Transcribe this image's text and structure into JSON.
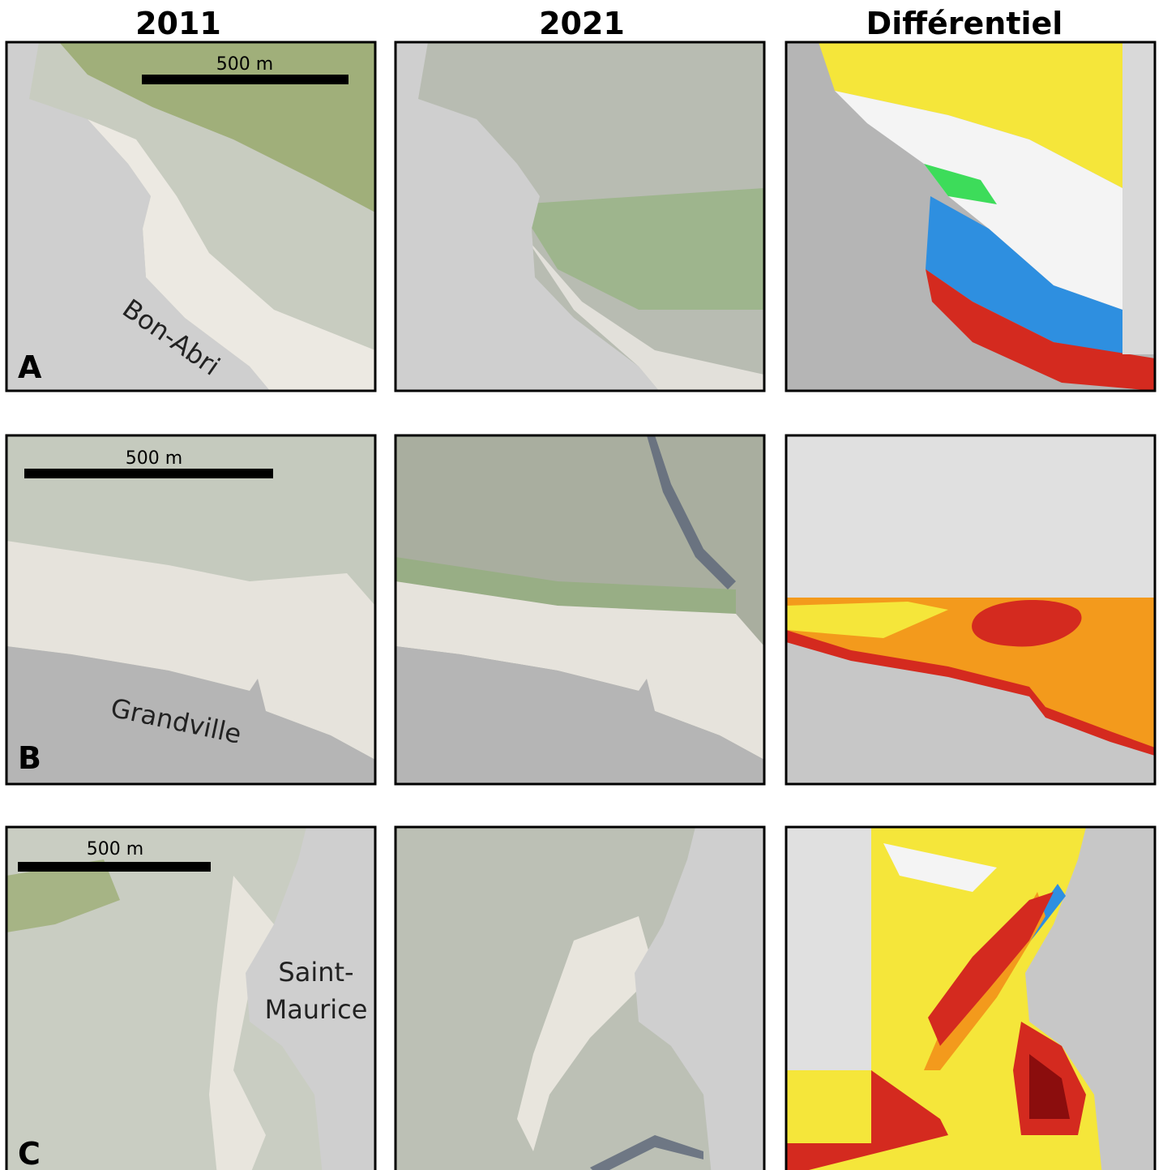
{
  "columns": [
    "2011",
    "2021",
    "Différentiel"
  ],
  "rows": [
    {
      "label": "A",
      "place": [
        "Bon-Abri"
      ],
      "scale_bar": "500 m"
    },
    {
      "label": "B",
      "place": [
        "Grandville"
      ],
      "scale_bar": "500 m"
    },
    {
      "label": "C",
      "place": [
        "Saint-",
        "Maurice"
      ],
      "scale_bar": "500 m"
    }
  ]
}
